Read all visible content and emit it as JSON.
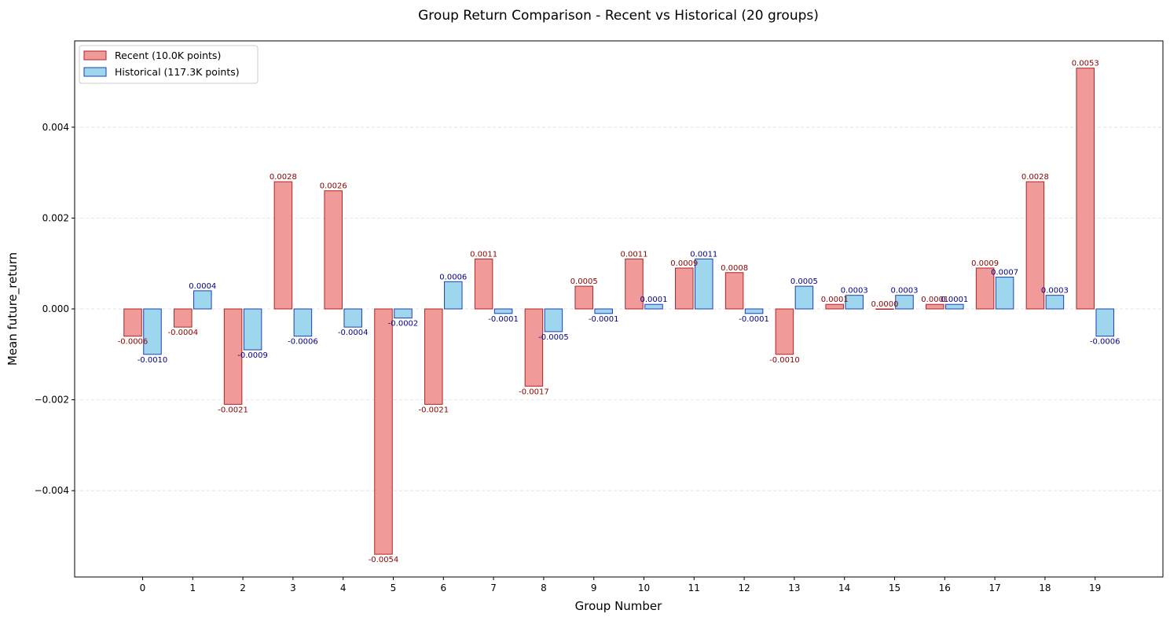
{
  "chart_data": {
    "type": "bar",
    "title": "Group Return Comparison - Recent vs Historical (20 groups)",
    "xlabel": "Group Number",
    "ylabel": "Mean future_return",
    "ylim": [
      -0.0059,
      0.0059
    ],
    "yticks": [
      -0.004,
      -0.002,
      0.0,
      0.002,
      0.004
    ],
    "ytick_labels": [
      "−0.004",
      "−0.002",
      "0.000",
      "0.002",
      "0.004"
    ],
    "categories": [
      "0",
      "1",
      "2",
      "3",
      "4",
      "5",
      "6",
      "7",
      "8",
      "9",
      "10",
      "11",
      "12",
      "13",
      "14",
      "15",
      "16",
      "17",
      "18",
      "19"
    ],
    "grid": "horizontal dashed",
    "legend_position": "top-left",
    "series": [
      {
        "name": "Recent (10.0K points)",
        "fill": "#f19a9a",
        "edge": "#b02323",
        "label_color": "#8b0000",
        "values": [
          -0.0006,
          -0.0004,
          -0.0021,
          0.0028,
          0.0026,
          -0.0054,
          -0.0021,
          0.0011,
          -0.0017,
          0.0005,
          0.0011,
          0.0009,
          0.0008,
          -0.001,
          0.0001,
          0.0,
          0.0001,
          0.0009,
          0.0028,
          0.0053
        ],
        "labels": [
          "-0.0006",
          "-0.0004",
          "-0.0021",
          "0.0028",
          "0.0026",
          "-0.0054",
          "-0.0021",
          "0.0011",
          "-0.0017",
          "0.0005",
          "0.0011",
          "0.0009",
          "0.0008",
          "-0.0010",
          "0.0001",
          "0.0000",
          "0.0001",
          "0.0009",
          "0.0028",
          "0.0053"
        ]
      },
      {
        "name": "Historical (117.3K points)",
        "fill": "#9ed6ee",
        "edge": "#1f3fb4",
        "label_color": "#00008b",
        "values": [
          -0.001,
          0.0004,
          -0.0009,
          -0.0006,
          -0.0004,
          -0.0002,
          0.0006,
          -0.0001,
          -0.0005,
          -0.0001,
          0.0001,
          0.0011,
          -0.0001,
          0.0005,
          0.0003,
          0.0003,
          0.0001,
          0.0007,
          0.0003,
          -0.0006
        ],
        "labels": [
          "-0.0010",
          "0.0004",
          "-0.0009",
          "-0.0006",
          "-0.0004",
          "-0.0002",
          "0.0006",
          "-0.0001",
          "-0.0005",
          "-0.0001",
          "0.0001",
          "0.0011",
          "-0.0001",
          "0.0005",
          "0.0003",
          "0.0003",
          "0.0001",
          "0.0007",
          "0.0003",
          "-0.0006"
        ]
      }
    ]
  }
}
